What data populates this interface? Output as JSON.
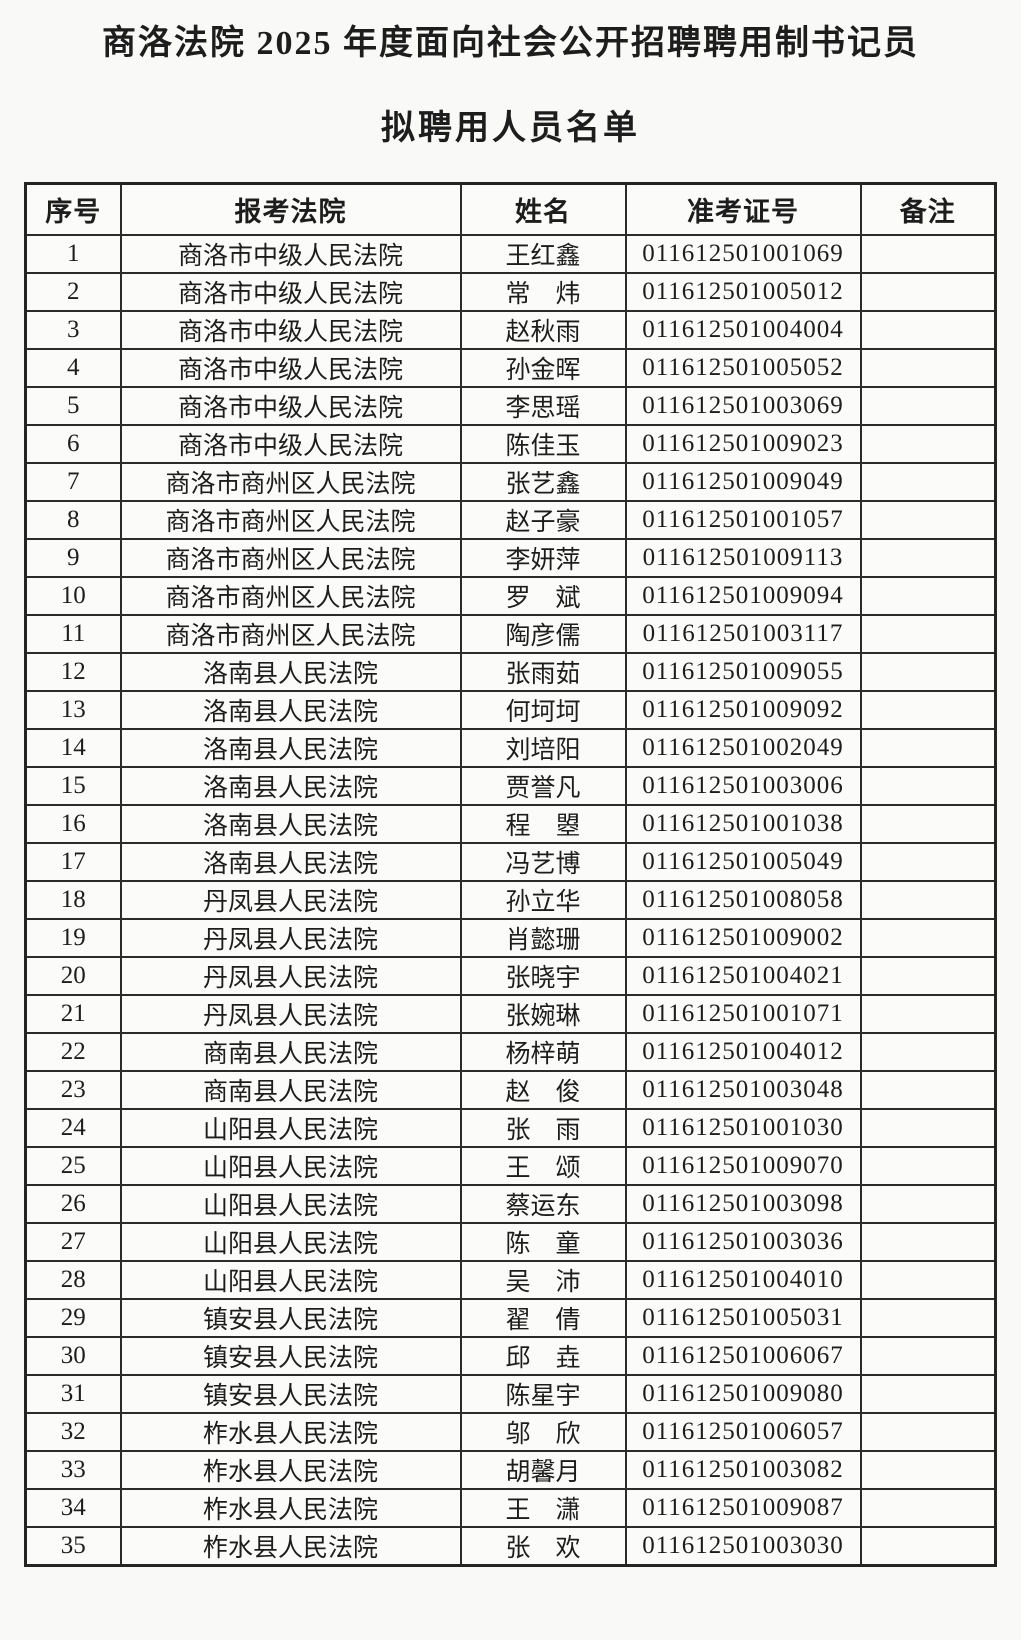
{
  "title": {
    "line1": "商洛法院 2025 年度面向社会公开招聘聘用制书记员",
    "line2": "拟聘用人员名单"
  },
  "colors": {
    "page_background": "#f9f9f7",
    "border": "#2b2b2b",
    "text": "#1d1d1d"
  },
  "table": {
    "headers": [
      "序号",
      "报考法院",
      "姓名",
      "准考证号",
      "备注"
    ],
    "rows": [
      {
        "no": "1",
        "court": "商洛市中级人民法院",
        "name": "王红鑫",
        "ticket": "011612501001069",
        "note": ""
      },
      {
        "no": "2",
        "court": "商洛市中级人民法院",
        "name": "常　炜",
        "ticket": "011612501005012",
        "note": ""
      },
      {
        "no": "3",
        "court": "商洛市中级人民法院",
        "name": "赵秋雨",
        "ticket": "011612501004004",
        "note": ""
      },
      {
        "no": "4",
        "court": "商洛市中级人民法院",
        "name": "孙金晖",
        "ticket": "011612501005052",
        "note": ""
      },
      {
        "no": "5",
        "court": "商洛市中级人民法院",
        "name": "李思瑶",
        "ticket": "011612501003069",
        "note": ""
      },
      {
        "no": "6",
        "court": "商洛市中级人民法院",
        "name": "陈佳玉",
        "ticket": "011612501009023",
        "note": ""
      },
      {
        "no": "7",
        "court": "商洛市商州区人民法院",
        "name": "张艺鑫",
        "ticket": "011612501009049",
        "note": ""
      },
      {
        "no": "8",
        "court": "商洛市商州区人民法院",
        "name": "赵子豪",
        "ticket": "011612501001057",
        "note": ""
      },
      {
        "no": "9",
        "court": "商洛市商州区人民法院",
        "name": "李妍萍",
        "ticket": "011612501009113",
        "note": ""
      },
      {
        "no": "10",
        "court": "商洛市商州区人民法院",
        "name": "罗　斌",
        "ticket": "011612501009094",
        "note": ""
      },
      {
        "no": "11",
        "court": "商洛市商州区人民法院",
        "name": "陶彦儒",
        "ticket": "011612501003117",
        "note": ""
      },
      {
        "no": "12",
        "court": "洛南县人民法院",
        "name": "张雨茹",
        "ticket": "011612501009055",
        "note": ""
      },
      {
        "no": "13",
        "court": "洛南县人民法院",
        "name": "何坷坷",
        "ticket": "011612501009092",
        "note": ""
      },
      {
        "no": "14",
        "court": "洛南县人民法院",
        "name": "刘培阳",
        "ticket": "011612501002049",
        "note": ""
      },
      {
        "no": "15",
        "court": "洛南县人民法院",
        "name": "贾誉凡",
        "ticket": "011612501003006",
        "note": ""
      },
      {
        "no": "16",
        "court": "洛南县人民法院",
        "name": "程　曌",
        "ticket": "011612501001038",
        "note": ""
      },
      {
        "no": "17",
        "court": "洛南县人民法院",
        "name": "冯艺博",
        "ticket": "011612501005049",
        "note": ""
      },
      {
        "no": "18",
        "court": "丹凤县人民法院",
        "name": "孙立华",
        "ticket": "011612501008058",
        "note": ""
      },
      {
        "no": "19",
        "court": "丹凤县人民法院",
        "name": "肖懿珊",
        "ticket": "011612501009002",
        "note": ""
      },
      {
        "no": "20",
        "court": "丹凤县人民法院",
        "name": "张晓宇",
        "ticket": "011612501004021",
        "note": ""
      },
      {
        "no": "21",
        "court": "丹凤县人民法院",
        "name": "张婉琳",
        "ticket": "011612501001071",
        "note": ""
      },
      {
        "no": "22",
        "court": "商南县人民法院",
        "name": "杨梓萌",
        "ticket": "011612501004012",
        "note": ""
      },
      {
        "no": "23",
        "court": "商南县人民法院",
        "name": "赵　俊",
        "ticket": "011612501003048",
        "note": ""
      },
      {
        "no": "24",
        "court": "山阳县人民法院",
        "name": "张　雨",
        "ticket": "011612501001030",
        "note": ""
      },
      {
        "no": "25",
        "court": "山阳县人民法院",
        "name": "王　颂",
        "ticket": "011612501009070",
        "note": ""
      },
      {
        "no": "26",
        "court": "山阳县人民法院",
        "name": "蔡运东",
        "ticket": "011612501003098",
        "note": ""
      },
      {
        "no": "27",
        "court": "山阳县人民法院",
        "name": "陈　童",
        "ticket": "011612501003036",
        "note": ""
      },
      {
        "no": "28",
        "court": "山阳县人民法院",
        "name": "吴　沛",
        "ticket": "011612501004010",
        "note": ""
      },
      {
        "no": "29",
        "court": "镇安县人民法院",
        "name": "翟　倩",
        "ticket": "011612501005031",
        "note": ""
      },
      {
        "no": "30",
        "court": "镇安县人民法院",
        "name": "邱　垚",
        "ticket": "011612501006067",
        "note": ""
      },
      {
        "no": "31",
        "court": "镇安县人民法院",
        "name": "陈星宇",
        "ticket": "011612501009080",
        "note": ""
      },
      {
        "no": "32",
        "court": "柞水县人民法院",
        "name": "邬　欣",
        "ticket": "011612501006057",
        "note": ""
      },
      {
        "no": "33",
        "court": "柞水县人民法院",
        "name": "胡馨月",
        "ticket": "011612501003082",
        "note": ""
      },
      {
        "no": "34",
        "court": "柞水县人民法院",
        "name": "王　潇",
        "ticket": "011612501009087",
        "note": ""
      },
      {
        "no": "35",
        "court": "柞水县人民法院",
        "name": "张　欢",
        "ticket": "011612501003030",
        "note": ""
      }
    ]
  }
}
